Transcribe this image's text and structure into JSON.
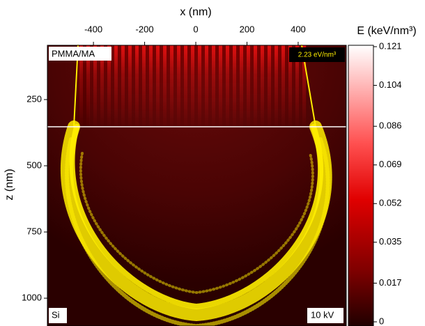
{
  "chart_data": {
    "type": "heatmap",
    "xlabel": "x (nm)",
    "ylabel": "z (nm)",
    "xlim": [
      -580,
      588
    ],
    "xticks": [
      -400,
      -200,
      0,
      200,
      400
    ],
    "ylim": [
      45,
      1105
    ],
    "yticks": [
      250,
      500,
      750,
      1000
    ],
    "annotations": [
      "PMMA/MA",
      "2.23 eV/nm³",
      "Si",
      "10 kV"
    ],
    "colorbar": {
      "label": "E (keV/nm³)",
      "lim": [
        0,
        0.121
      ],
      "ticks": [
        0.121,
        0.104,
        0.086,
        0.069,
        0.052,
        0.035,
        0.017,
        0
      ]
    }
  }
}
